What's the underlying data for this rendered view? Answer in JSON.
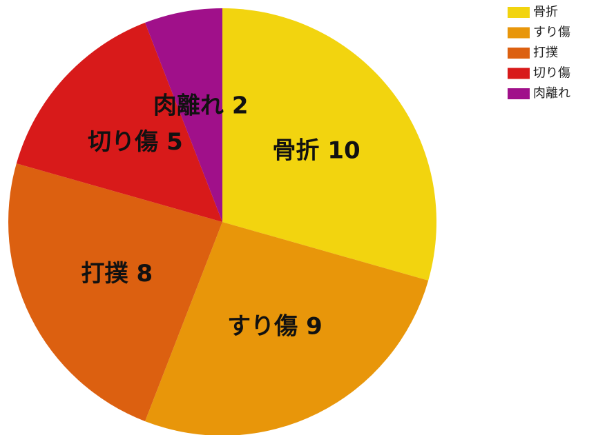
{
  "chart_data": {
    "type": "pie",
    "categories": [
      "骨折",
      "すり傷",
      "打撲",
      "切り傷",
      "肉離れ"
    ],
    "values": [
      10,
      9,
      8,
      5,
      2
    ],
    "colors": [
      "#f2d40f",
      "#e8960a",
      "#dc6010",
      "#d81a1a",
      "#a0108a"
    ],
    "legend": "top-right"
  }
}
